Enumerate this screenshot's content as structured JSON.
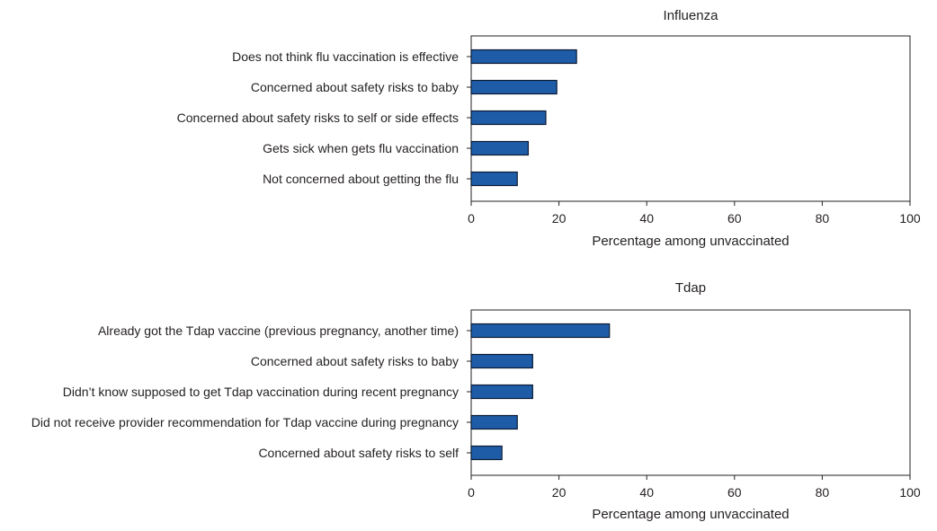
{
  "chart_data": [
    {
      "type": "bar",
      "orientation": "horizontal",
      "title": "Influenza",
      "xlabel": "Percentage among unvaccinated",
      "ylabel": "",
      "xlim": [
        0,
        100
      ],
      "xticks": [
        0,
        20,
        40,
        60,
        80,
        100
      ],
      "categories": [
        "Does not think flu vaccination is effective",
        "Concerned about safety risks to baby",
        "Concerned about safety risks to self or side effects",
        "Gets sick when gets flu vaccination",
        "Not concerned about getting the flu"
      ],
      "values": [
        24,
        19.5,
        17,
        13,
        10.5
      ],
      "color": "#1f5ca8"
    },
    {
      "type": "bar",
      "orientation": "horizontal",
      "title": "Tdap",
      "xlabel": "Percentage among unvaccinated",
      "ylabel": "",
      "xlim": [
        0,
        100
      ],
      "xticks": [
        0,
        20,
        40,
        60,
        80,
        100
      ],
      "categories": [
        "Already got the Tdap vaccine (previous pregnancy, another time)",
        "Concerned about safety risks to baby",
        "Didn’t know supposed to get Tdap vaccination during recent pregnancy",
        "Did not receive provider recommendation for Tdap vaccine during pregnancy",
        "Concerned about safety risks to self"
      ],
      "values": [
        31.5,
        14,
        14,
        10.5,
        7
      ],
      "color": "#1f5ca8"
    }
  ]
}
